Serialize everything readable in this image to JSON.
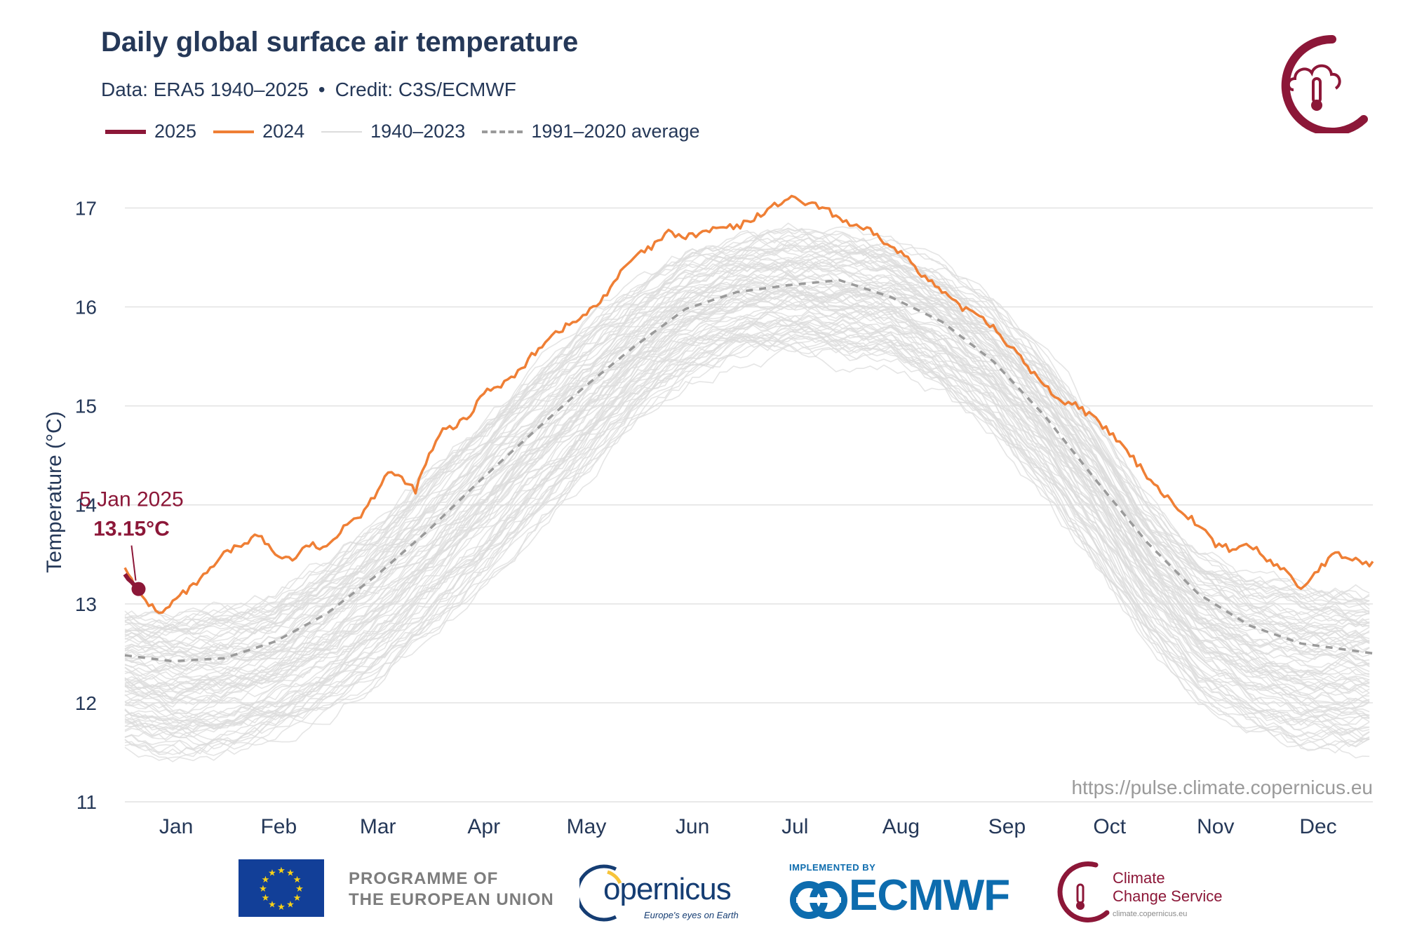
{
  "header": {
    "title": "Daily global surface air temperature",
    "subtitle_data": "Data: ERA5 1940–2025",
    "subtitle_sep": "•",
    "subtitle_credit": "Credit: C3S/ECMWF"
  },
  "legend": {
    "items": [
      {
        "label": "2025",
        "color": "#8c1738"
      },
      {
        "label": "2024",
        "color": "#ef7f35"
      },
      {
        "label": "1940–2023",
        "color": "#dcdcdc"
      },
      {
        "label": "1991–2020 average",
        "color": "#9a9a9a"
      }
    ]
  },
  "annotation": {
    "date": "5 Jan 2025",
    "value": "13.15°C"
  },
  "watermark": "https://pulse.climate.copernicus.eu",
  "footer": {
    "eu_line1": "PROGRAMME OF",
    "eu_line2": "THE EUROPEAN UNION",
    "copernicus_word": "opernicus",
    "copernicus_tag": "Europe's eyes on Earth",
    "ecmwf_implemented": "IMPLEMENTED BY",
    "ecmwf_word": "ECMWF",
    "ccs_line1": "Climate",
    "ccs_line2": "Change Service",
    "ccs_url": "climate.copernicus.eu"
  },
  "chart_data": {
    "type": "line",
    "title": "Daily global surface air temperature",
    "xlabel": "",
    "ylabel": "Temperature (°C)",
    "ylim": [
      11,
      17.4
    ],
    "yticks": [
      11,
      12,
      13,
      14,
      15,
      16,
      17
    ],
    "xlim": [
      1,
      366
    ],
    "months": [
      {
        "label": "Jan",
        "mid": 16
      },
      {
        "label": "Feb",
        "mid": 46
      },
      {
        "label": "Mar",
        "mid": 75
      },
      {
        "label": "Apr",
        "mid": 106
      },
      {
        "label": "May",
        "mid": 136
      },
      {
        "label": "Jun",
        "mid": 167
      },
      {
        "label": "Jul",
        "mid": 197
      },
      {
        "label": "Aug",
        "mid": 228
      },
      {
        "label": "Sep",
        "mid": 259
      },
      {
        "label": "Oct",
        "mid": 289
      },
      {
        "label": "Nov",
        "mid": 320
      },
      {
        "label": "Dec",
        "mid": 350
      }
    ],
    "grid": true,
    "series": [
      {
        "name": "2024",
        "color": "#ef7f35",
        "x": [
          1,
          4,
          8,
          12,
          16,
          20,
          25,
          30,
          35,
          40,
          45,
          50,
          55,
          60,
          65,
          70,
          74,
          78,
          82,
          86,
          90,
          94,
          98,
          102,
          106,
          110,
          115,
          120,
          125,
          130,
          135,
          140,
          145,
          150,
          155,
          160,
          165,
          170,
          175,
          180,
          185,
          190,
          195,
          200,
          205,
          210,
          215,
          220,
          225,
          230,
          235,
          240,
          245,
          250,
          255,
          260,
          265,
          270,
          275,
          280,
          285,
          290,
          295,
          300,
          305,
          310,
          315,
          320,
          325,
          330,
          335,
          340,
          345,
          350,
          355,
          360,
          366
        ],
        "y": [
          13.4,
          13.15,
          13.0,
          12.9,
          13.05,
          13.15,
          13.3,
          13.5,
          13.6,
          13.7,
          13.5,
          13.45,
          13.6,
          13.55,
          13.8,
          13.9,
          14.1,
          14.35,
          14.25,
          14.15,
          14.5,
          14.75,
          14.8,
          14.9,
          15.15,
          15.2,
          15.3,
          15.5,
          15.7,
          15.8,
          15.9,
          16.05,
          16.3,
          16.5,
          16.6,
          16.75,
          16.7,
          16.75,
          16.8,
          16.8,
          16.9,
          17.0,
          17.1,
          17.05,
          17.0,
          16.9,
          16.8,
          16.75,
          16.6,
          16.5,
          16.3,
          16.15,
          16.0,
          15.95,
          15.8,
          15.6,
          15.4,
          15.2,
          15.05,
          15.0,
          14.85,
          14.7,
          14.5,
          14.3,
          14.1,
          13.95,
          13.8,
          13.6,
          13.55,
          13.6,
          13.45,
          13.35,
          13.15,
          13.35,
          13.5,
          13.45,
          13.4
        ]
      },
      {
        "name": "1991–2020 average",
        "color": "#9a9a9a",
        "x": [
          1,
          15,
          30,
          45,
          60,
          75,
          90,
          105,
          120,
          135,
          150,
          165,
          180,
          195,
          210,
          225,
          240,
          255,
          270,
          285,
          300,
          315,
          330,
          345,
          366
        ],
        "y": [
          12.48,
          12.42,
          12.45,
          12.62,
          12.9,
          13.3,
          13.75,
          14.25,
          14.72,
          15.18,
          15.6,
          15.98,
          16.15,
          16.22,
          16.27,
          16.1,
          15.85,
          15.45,
          14.9,
          14.25,
          13.62,
          13.1,
          12.78,
          12.6,
          12.5
        ]
      },
      {
        "name": "2025",
        "color": "#8c1738",
        "x": [
          1,
          2,
          3,
          4,
          5
        ],
        "y": [
          13.3,
          13.25,
          13.22,
          13.18,
          13.15
        ]
      }
    ],
    "historical_band": {
      "name": "1940–2023",
      "color": "#dcdcdc",
      "x": [
        1,
        15,
        30,
        45,
        60,
        75,
        90,
        105,
        120,
        135,
        150,
        165,
        180,
        195,
        210,
        225,
        240,
        255,
        270,
        285,
        300,
        315,
        330,
        345,
        366
      ],
      "low": [
        11.5,
        11.4,
        11.45,
        11.6,
        11.85,
        12.2,
        12.65,
        13.15,
        13.7,
        14.25,
        14.8,
        15.2,
        15.45,
        15.5,
        15.45,
        15.4,
        15.15,
        14.7,
        14.1,
        13.4,
        12.6,
        12.0,
        11.7,
        11.5,
        11.45
      ],
      "high": [
        12.95,
        12.9,
        12.95,
        13.1,
        13.45,
        13.85,
        14.35,
        14.85,
        15.35,
        15.8,
        16.2,
        16.55,
        16.7,
        16.8,
        16.75,
        16.65,
        16.4,
        16.05,
        15.5,
        14.85,
        14.1,
        13.55,
        13.3,
        13.2,
        13.15
      ]
    },
    "highlight": {
      "x": 5,
      "y": 13.15,
      "date": "5 Jan 2025",
      "label": "13.15°C"
    }
  }
}
